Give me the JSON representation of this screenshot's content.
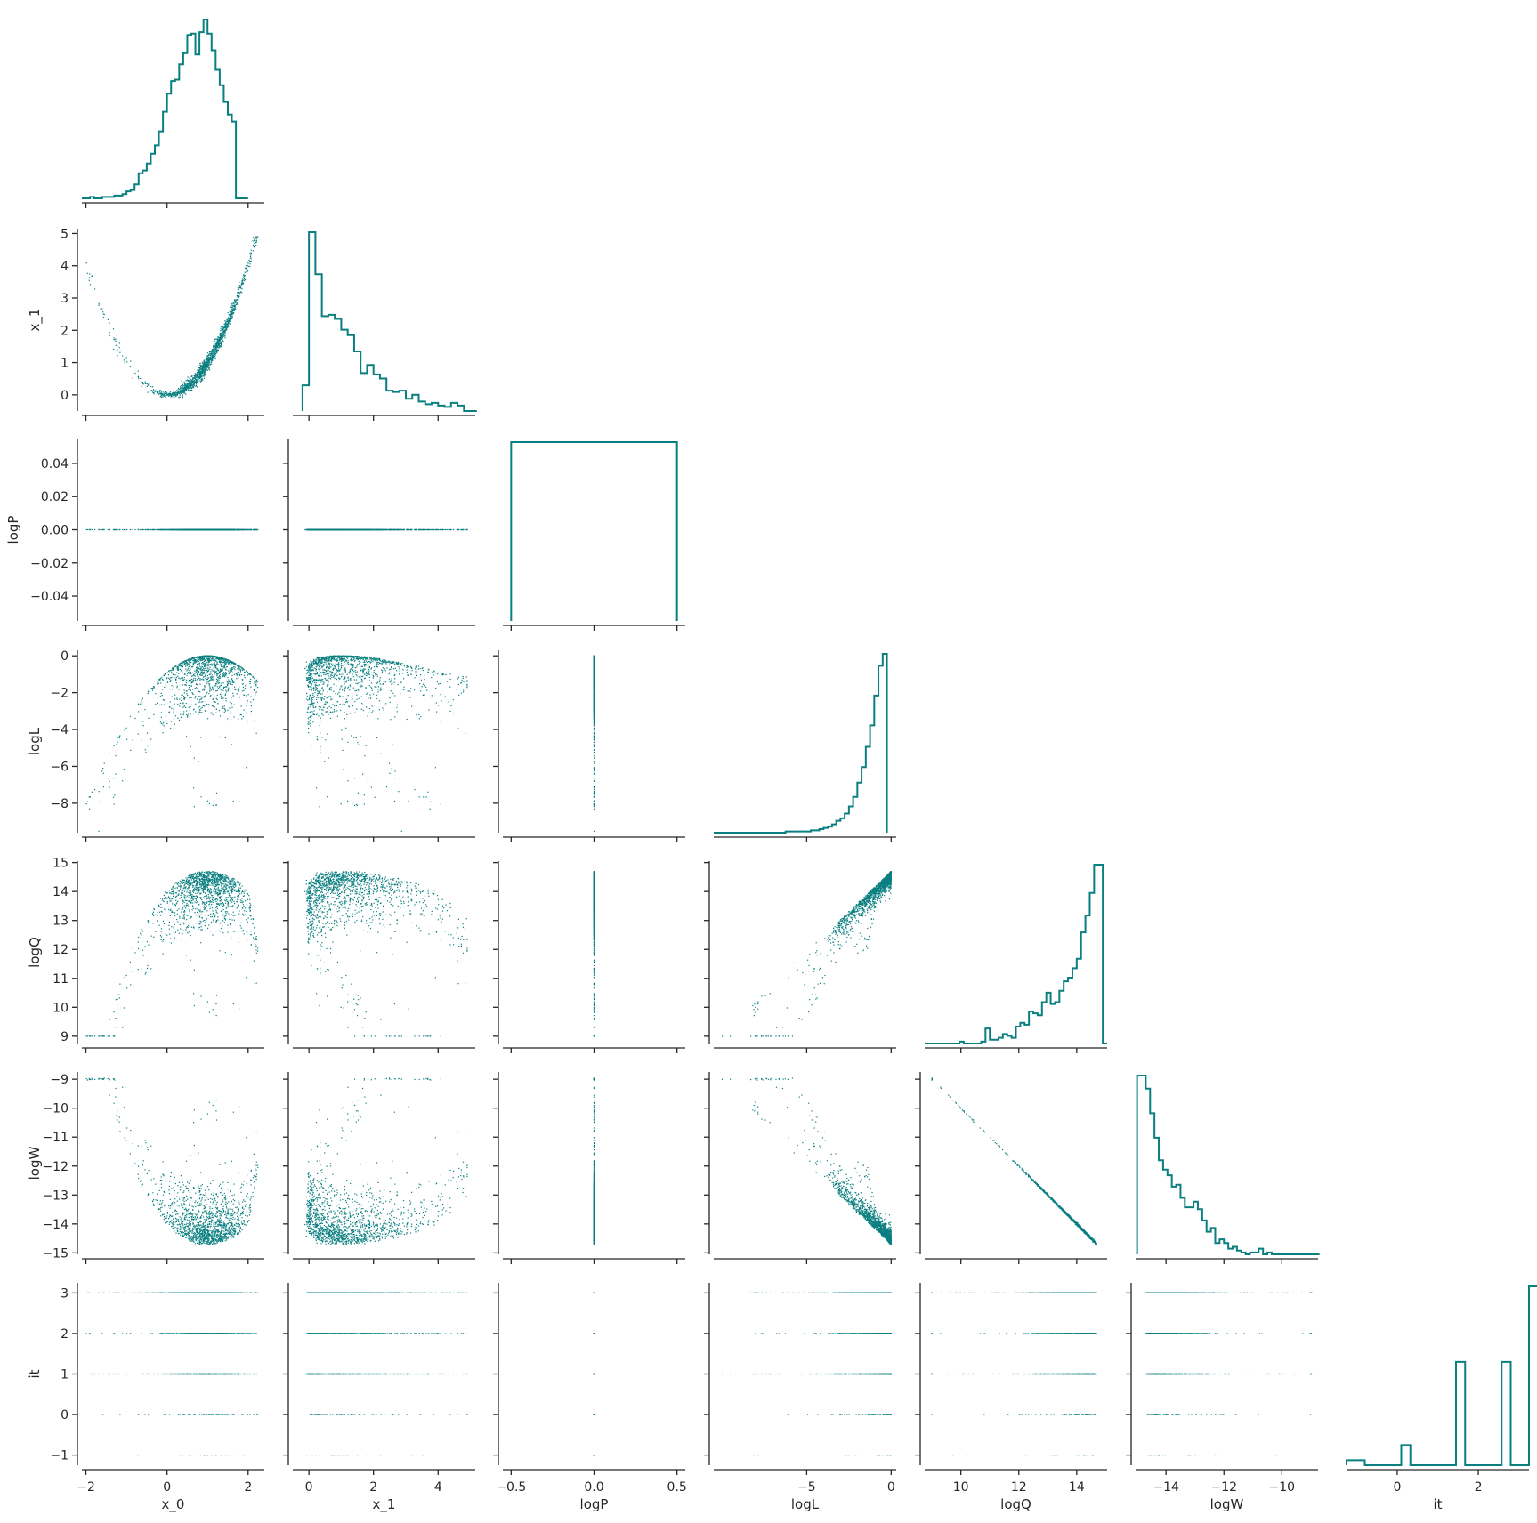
{
  "chart_data": {
    "type": "scatter",
    "kind": "pairplot-corner",
    "color": "#0a7f80",
    "variables": [
      {
        "name": "x_0",
        "range": [
          -2.1,
          2.4
        ],
        "ticks": [
          -2,
          0,
          2
        ],
        "tick_labels": [
          "−2",
          "0",
          "2"
        ]
      },
      {
        "name": "x_1",
        "range": [
          -0.5,
          5.15
        ],
        "ticks": [
          0,
          1,
          2,
          3,
          4,
          5
        ],
        "tick_labels": [
          "0",
          "1",
          "2",
          "3",
          "4",
          "5"
        ],
        "x_ticks": [
          0,
          2,
          4
        ],
        "x_tick_labels": [
          "0",
          "2",
          "4"
        ]
      },
      {
        "name": "logP",
        "range": [
          -0.55,
          0.55
        ],
        "ticks": [
          -0.04,
          -0.02,
          0,
          0.02,
          0.04
        ],
        "tick_labels": [
          "−0.04",
          "−0.02",
          "0.00",
          "0.02",
          "0.04"
        ],
        "y_range": [
          -0.055,
          0.055
        ],
        "x_ticks": [
          -0.5,
          0,
          0.5
        ],
        "x_tick_labels": [
          "−0.5",
          "0.0",
          "0.5"
        ]
      },
      {
        "name": "logL",
        "range": [
          -10.5,
          0.3
        ],
        "ticks": [
          -8,
          -6,
          -4,
          -2,
          0
        ],
        "tick_labels": [
          "−8",
          "−6",
          "−4",
          "−2",
          "0"
        ],
        "y_range": [
          -9.6,
          0.3
        ],
        "x_ticks": [
          -5,
          0
        ],
        "x_tick_labels": [
          "−5",
          "0"
        ]
      },
      {
        "name": "logQ",
        "range": [
          8.75,
          15.05
        ],
        "ticks": [
          9,
          10,
          11,
          12,
          13,
          14,
          15
        ],
        "tick_labels": [
          "9",
          "10",
          "11",
          "12",
          "13",
          "14",
          "15"
        ],
        "x_ticks": [
          10,
          12,
          14
        ],
        "x_tick_labels": [
          "10",
          "12",
          "14"
        ]
      },
      {
        "name": "logW",
        "range": [
          -15.05,
          -8.75
        ],
        "ticks": [
          -15,
          -14,
          -13,
          -12,
          -11,
          -10,
          -9
        ],
        "tick_labels": [
          "−15",
          "−14",
          "−13",
          "−12",
          "−11",
          "−10",
          "−9"
        ],
        "x_ticks": [
          -14,
          -12,
          -10
        ],
        "x_tick_labels": [
          "−14",
          "−12",
          "−10"
        ]
      },
      {
        "name": "it",
        "range": [
          -1.25,
          3.25
        ],
        "ticks": [
          -1,
          0,
          1,
          2,
          3
        ],
        "tick_labels": [
          "−1",
          "0",
          "1",
          "2",
          "3"
        ],
        "x_ticks": [
          0,
          2
        ],
        "x_tick_labels": [
          "0",
          "2"
        ]
      }
    ],
    "histograms": {
      "x_0": {
        "edges_start": -2.1,
        "bin_width": 0.1,
        "counts": [
          0,
          0,
          1,
          0,
          0,
          1,
          1,
          1,
          2,
          2,
          3,
          5,
          6,
          10,
          18,
          20,
          25,
          32,
          38,
          48,
          62,
          75,
          84,
          85,
          96,
          104,
          117,
          118,
          103,
          119,
          128,
          118,
          106,
          92,
          81,
          69,
          60,
          55,
          0,
          0,
          0
        ]
      },
      "x_1": {
        "edges_start": -0.2,
        "bin_width": 0.2,
        "counts": [
          19,
          132,
          101,
          70,
          71,
          68,
          60,
          56,
          44,
          28,
          34,
          27,
          24,
          15,
          14,
          15,
          9,
          12,
          7,
          5,
          6,
          4,
          3,
          6,
          4,
          0,
          0
        ]
      },
      "logP": {
        "edges_start": -0.5,
        "bin_width": 1.0,
        "counts": [
          1
        ]
      },
      "logL": {
        "edges_start": -10.5,
        "bin_width": 0.25,
        "counts": [
          0,
          0,
          0,
          0,
          0,
          0,
          0,
          0,
          0,
          0,
          0,
          0,
          0,
          0,
          0,
          0,
          0,
          1,
          1,
          1,
          1,
          1,
          1,
          2,
          2,
          3,
          4,
          5,
          7,
          10,
          12,
          16,
          22,
          30,
          42,
          55,
          72,
          90,
          115,
          140,
          150
        ]
      },
      "logQ": {
        "edges_start": 8.75,
        "bin_width": 0.15,
        "counts": [
          0,
          0,
          0,
          0,
          0,
          0,
          0,
          0,
          1,
          0,
          0,
          0,
          0,
          1,
          8,
          2,
          2,
          3,
          5,
          4,
          3,
          9,
          11,
          10,
          17,
          16,
          15,
          22,
          27,
          21,
          22,
          28,
          33,
          35,
          40,
          45,
          59,
          68,
          80,
          95,
          95,
          0
        ]
      },
      "logW": {
        "edges_start": -15.0,
        "bin_width": 0.15,
        "counts": [
          95,
          95,
          88,
          75,
          62,
          50,
          45,
          42,
          36,
          37,
          30,
          25,
          25,
          28,
          24,
          18,
          12,
          14,
          6,
          8,
          6,
          3,
          4,
          2,
          1,
          0,
          1,
          1,
          3,
          0,
          1,
          0,
          0,
          0,
          0,
          0,
          0,
          0,
          0,
          0,
          0,
          0
        ]
      },
      "it": {
        "edges_start": -1.25,
        "bin_width": 0.225,
        "counts": [
          2,
          2,
          0,
          0,
          0,
          0,
          8,
          0,
          0,
          0,
          0,
          0,
          41,
          0,
          0,
          0,
          0,
          41,
          0,
          0,
          71
        ]
      }
    },
    "scatter_panels": [
      {
        "x": "x_0",
        "y": "x_1",
        "shape": "banana curve y ≈ x^2, points from x ≈ -2 to 2.3, minimum near (0, 0)"
      },
      {
        "x": "x_0",
        "y": "logP",
        "shape": "all points at logP = 0"
      },
      {
        "x": "x_1",
        "y": "logP",
        "shape": "all points at logP = 0"
      },
      {
        "x": "x_0",
        "y": "logL",
        "shape": "dome peaking at logL ≈ 0 near x_0 ≈ 1, sparse tail down to −9"
      },
      {
        "x": "x_1",
        "y": "logL",
        "shape": "dense band near 0 at small x_1, decreasing to −1.5 at x_1 ≈ 4.8"
      },
      {
        "x": "logP",
        "y": "logL",
        "shape": "vertical line at logP = 0"
      },
      {
        "x": "x_0",
        "y": "logQ",
        "shape": "arch peaking at logQ ≈ 14.7 near x_0 ≈ 1, tail down to 9 near x_0 ≈ 2.3"
      },
      {
        "x": "x_1",
        "y": "logQ",
        "shape": "arch peaking at 14.7 near x_1 ≈ 1, tail to 9 at x_1 ≈ 4.9"
      },
      {
        "x": "logP",
        "y": "logQ",
        "shape": "vertical line at logP = 0"
      },
      {
        "x": "logL",
        "y": "logQ",
        "shape": "fan converging at (0, 14.7)"
      },
      {
        "x": "x_0",
        "y": "logW",
        "shape": "valley reaching −14.8 near x_0 ≈ 1"
      },
      {
        "x": "x_1",
        "y": "logW",
        "shape": "valley reaching −14.8 near x_1 ≈ 1"
      },
      {
        "x": "logP",
        "y": "logW",
        "shape": "vertical line at logP = 0"
      },
      {
        "x": "logL",
        "y": "logW",
        "shape": "fan converging at (0, −14.8)"
      },
      {
        "x": "logQ",
        "y": "logW",
        "shape": "straight line logW = −logQ"
      },
      {
        "x": "x_0",
        "y": "it",
        "shape": "rows at it = −1, 0, 1, 2, 3"
      },
      {
        "x": "x_1",
        "y": "it",
        "shape": "rows at it = −1, 0, 1, 2, 3"
      },
      {
        "x": "logP",
        "y": "it",
        "shape": "points at logP = 0 for each it"
      },
      {
        "x": "logL",
        "y": "it",
        "shape": "rows at it = −1, 0, 1, 2, 3"
      },
      {
        "x": "logQ",
        "y": "it",
        "shape": "rows at it = −1, 0, 1, 2, 3"
      },
      {
        "x": "logW",
        "y": "it",
        "shape": "rows at it = −1, 0, 1, 2, 3"
      }
    ],
    "grid": false,
    "legend": "none"
  }
}
